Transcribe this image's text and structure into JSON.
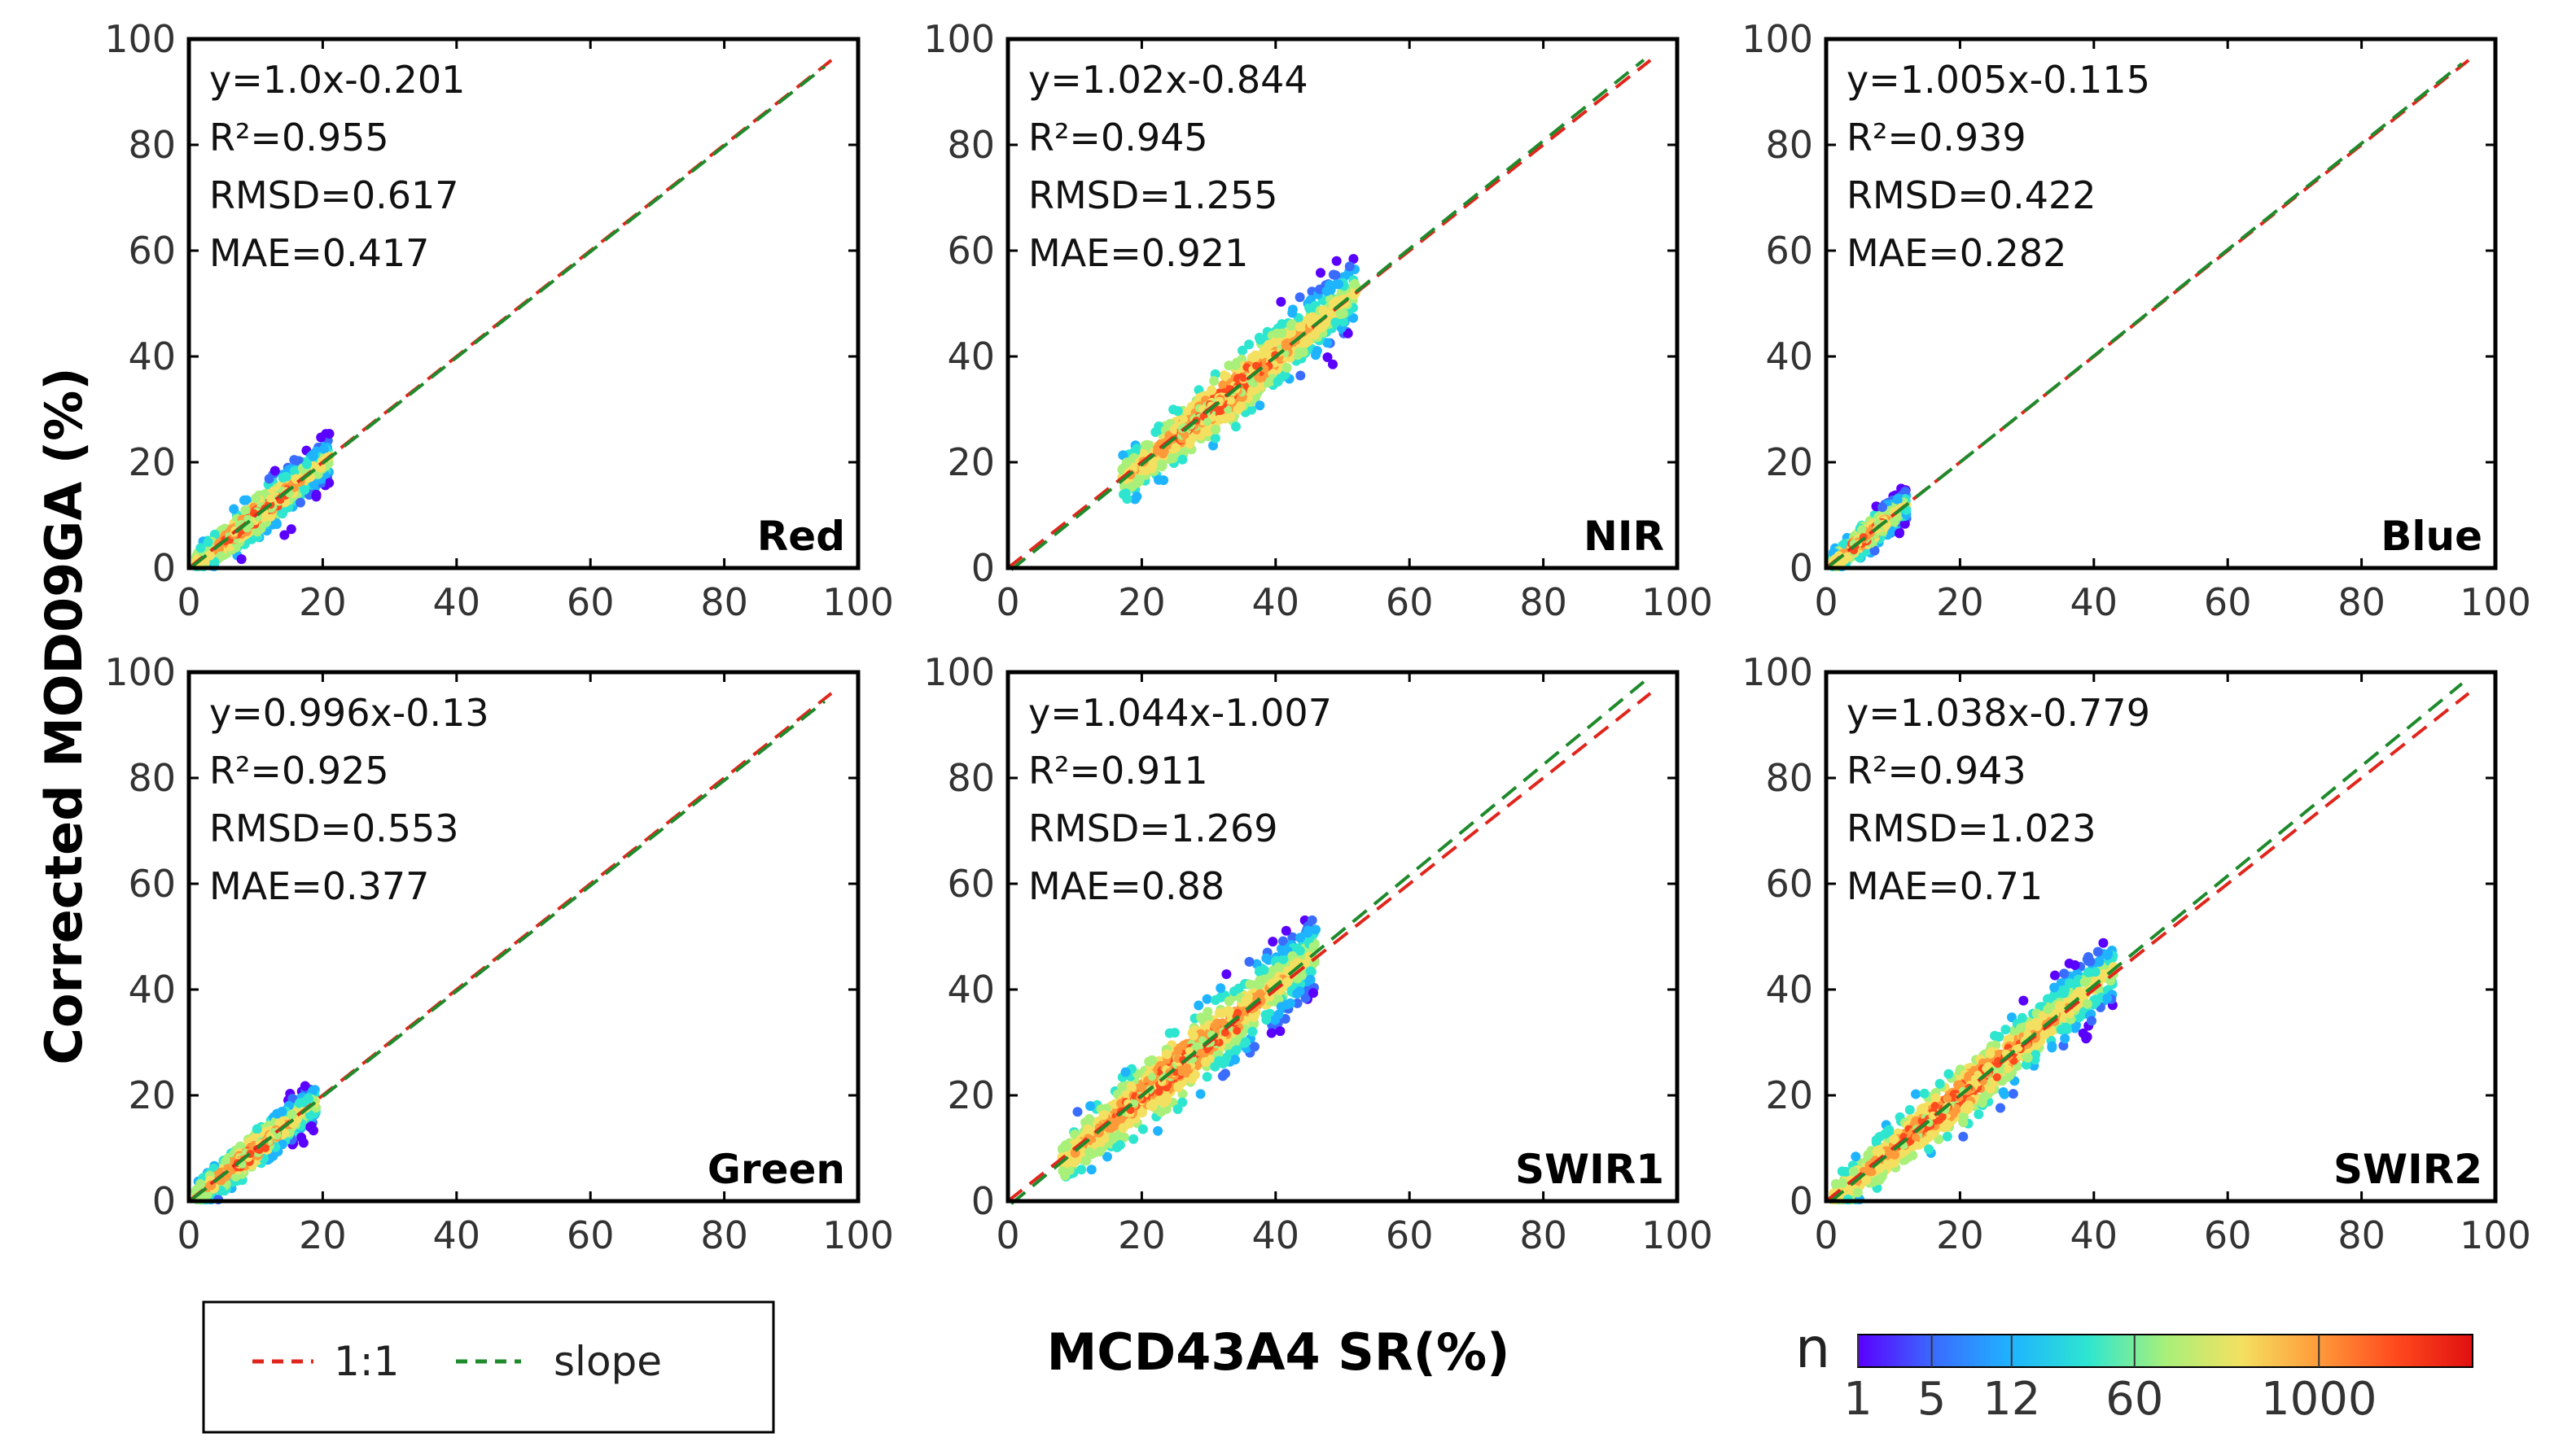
{
  "figure": {
    "ylabel": "Corrected MOD09GA (%)",
    "xlabel": "MCD43A4 SR(%)",
    "legend": {
      "one_to_one_label": "1:1",
      "slope_label": "slope",
      "one_to_one_color": "#e0261c",
      "slope_color": "#1e8a2c"
    },
    "colorbar": {
      "title": "n",
      "ticks": [
        "1",
        "5",
        "12",
        "60",
        "1000"
      ],
      "tick_fractions": [
        0.0,
        0.12,
        0.25,
        0.45,
        0.75
      ],
      "colors": [
        "#5a00ff",
        "#3a6cff",
        "#1fb4ff",
        "#2ee6d0",
        "#a8f07a",
        "#f4e060",
        "#ff9a3a",
        "#ff4a1e",
        "#e01010"
      ]
    },
    "colors": {
      "axis": "#000000",
      "tick_label": "#333333"
    }
  },
  "chart_data": [
    {
      "type": "scatter",
      "band": "Red",
      "stats": [
        "y=1.0x-0.201",
        "R²=0.955",
        "RMSD=0.617",
        "MAE=0.417"
      ],
      "slope": 1.0,
      "intercept": -0.201,
      "cloud": {
        "x_min": 1,
        "x_max": 21,
        "spread": 2.2
      },
      "xlim": [
        0,
        100
      ],
      "ylim": [
        0,
        100
      ],
      "xticks": [
        0,
        20,
        40,
        60,
        80,
        100
      ],
      "yticks": [
        0,
        20,
        40,
        60,
        80,
        100
      ]
    },
    {
      "type": "scatter",
      "band": "NIR",
      "stats": [
        "y=1.02x-0.844",
        "R²=0.945",
        "RMSD=1.255",
        "MAE=0.921"
      ],
      "slope": 1.02,
      "intercept": -0.844,
      "cloud": {
        "x_min": 17,
        "x_max": 52,
        "spread": 3.6
      },
      "xlim": [
        0,
        100
      ],
      "ylim": [
        0,
        100
      ],
      "xticks": [
        0,
        20,
        40,
        60,
        80,
        100
      ],
      "yticks": [
        0,
        20,
        40,
        60,
        80,
        100
      ]
    },
    {
      "type": "scatter",
      "band": "Blue",
      "stats": [
        "y=1.005x-0.115",
        "R²=0.939",
        "RMSD=0.422",
        "MAE=0.282"
      ],
      "slope": 1.005,
      "intercept": -0.115,
      "cloud": {
        "x_min": 1,
        "x_max": 12,
        "spread": 1.6
      },
      "xlim": [
        0,
        100
      ],
      "ylim": [
        0,
        100
      ],
      "xticks": [
        0,
        20,
        40,
        60,
        80,
        100
      ],
      "yticks": [
        0,
        20,
        40,
        60,
        80,
        100
      ]
    },
    {
      "type": "scatter",
      "band": "Green",
      "stats": [
        "y=0.996x-0.13",
        "R²=0.925",
        "RMSD=0.553",
        "MAE=0.377"
      ],
      "slope": 0.996,
      "intercept": -0.13,
      "cloud": {
        "x_min": 1,
        "x_max": 19,
        "spread": 2.0
      },
      "xlim": [
        0,
        100
      ],
      "ylim": [
        0,
        100
      ],
      "xticks": [
        0,
        20,
        40,
        60,
        80,
        100
      ],
      "yticks": [
        0,
        20,
        40,
        60,
        80,
        100
      ]
    },
    {
      "type": "scatter",
      "band": "SWIR1",
      "stats": [
        "y=1.044x-1.007",
        "R²=0.911",
        "RMSD=1.269",
        "MAE=0.88"
      ],
      "slope": 1.044,
      "intercept": -1.007,
      "cloud": {
        "x_min": 8,
        "x_max": 46,
        "spread": 4.0
      },
      "xlim": [
        0,
        100
      ],
      "ylim": [
        0,
        100
      ],
      "xticks": [
        0,
        20,
        40,
        60,
        80,
        100
      ],
      "yticks": [
        0,
        20,
        40,
        60,
        80,
        100
      ]
    },
    {
      "type": "scatter",
      "band": "SWIR2",
      "stats": [
        "y=1.038x-0.779",
        "R²=0.943",
        "RMSD=1.023",
        "MAE=0.71"
      ],
      "slope": 1.038,
      "intercept": -0.779,
      "cloud": {
        "x_min": 1,
        "x_max": 43,
        "spread": 3.4
      },
      "xlim": [
        0,
        100
      ],
      "ylim": [
        0,
        100
      ],
      "xticks": [
        0,
        20,
        40,
        60,
        80,
        100
      ],
      "yticks": [
        0,
        20,
        40,
        60,
        80,
        100
      ]
    }
  ]
}
